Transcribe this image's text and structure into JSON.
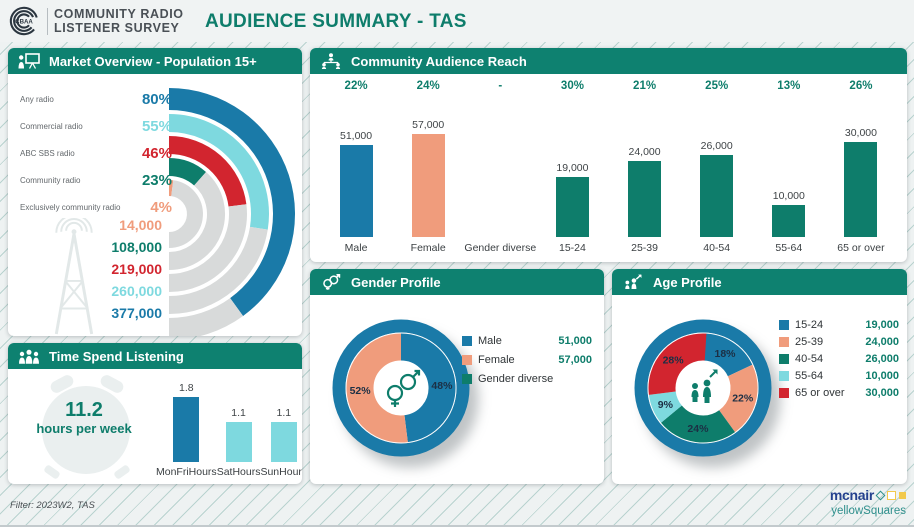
{
  "header": {
    "logo_text": "CBAA",
    "brand_line1": "COMMUNITY RADIO",
    "brand_line2": "LISTENER SURVEY",
    "title": "AUDIENCE SUMMARY - TAS"
  },
  "colors": {
    "header_bar": "#0E8170",
    "accent_teal": "#0E7D6B",
    "ring_gray": "#D8DADA",
    "donut_outer_blue": "#1A7AA8",
    "slice_label": "#1C2F44"
  },
  "chart_data": [
    {
      "id": "market_overview",
      "type": "bar",
      "variant": "radial-gauge",
      "title": "Market Overview - Population 15+",
      "legend_position": "left",
      "rows": [
        {
          "label": "Any radio",
          "pct": 80,
          "pct_label": "80%",
          "value": "377,000",
          "color": "#1A7AA8"
        },
        {
          "label": "Commercial radio",
          "pct": 55,
          "pct_label": "55%",
          "value": "260,000",
          "color": "#7ED9DF"
        },
        {
          "label": "ABC SBS radio",
          "pct": 46,
          "pct_label": "46%",
          "value": "219,000",
          "color": "#D2252F"
        },
        {
          "label": "Community radio",
          "pct": 23,
          "pct_label": "23%",
          "value": "108,000",
          "color": "#0E7D6B"
        },
        {
          "label": "Exclusively community radio",
          "pct": 4,
          "pct_label": "4%",
          "value": "14,000",
          "color": "#F09C7C"
        }
      ]
    },
    {
      "id": "audience_reach",
      "type": "bar",
      "title": "Community Audience Reach",
      "ylim_gender": [
        0,
        57000
      ],
      "ylim_age": [
        0,
        30000
      ],
      "bars": [
        {
          "label": "Male",
          "pct_label": "22%",
          "value": "51,000",
          "num": 51000,
          "color": "#1A7AA8",
          "group": "gender"
        },
        {
          "label": "Female",
          "pct_label": "24%",
          "value": "57,000",
          "num": 57000,
          "color": "#F09C7C",
          "group": "gender"
        },
        {
          "label": "Gender diverse",
          "pct_label": "-",
          "value": "",
          "num": 0,
          "color": null,
          "group": "gender"
        },
        {
          "label": "15-24",
          "pct_label": "30%",
          "value": "19,000",
          "num": 19000,
          "color": "#0E7D6B",
          "group": "age"
        },
        {
          "label": "25-39",
          "pct_label": "21%",
          "value": "24,000",
          "num": 24000,
          "color": "#0E7D6B",
          "group": "age"
        },
        {
          "label": "40-54",
          "pct_label": "25%",
          "value": "26,000",
          "num": 26000,
          "color": "#0E7D6B",
          "group": "age"
        },
        {
          "label": "55-64",
          "pct_label": "13%",
          "value": "10,000",
          "num": 10000,
          "color": "#0E7D6B",
          "group": "age"
        },
        {
          "label": "65 or over",
          "pct_label": "26%",
          "value": "30,000",
          "num": 30000,
          "color": "#0E7D6B",
          "group": "age"
        }
      ]
    },
    {
      "id": "gender_profile",
      "type": "pie",
      "title": "Gender Profile",
      "legend_position": "right",
      "slices": [
        {
          "label": "Male",
          "pct": 48,
          "pct_label": "48%",
          "value": "51,000",
          "color": "#1A7AA8"
        },
        {
          "label": "Female",
          "pct": 52,
          "pct_label": "52%",
          "value": "57,000",
          "color": "#F09C7C"
        },
        {
          "label": "Gender diverse",
          "pct": 0,
          "pct_label": "",
          "value": "",
          "color": "#0E7D6B"
        }
      ]
    },
    {
      "id": "age_profile",
      "type": "pie",
      "title": "Age Profile",
      "legend_position": "right",
      "slices": [
        {
          "label": "15-24",
          "pct": 18,
          "pct_label": "18%",
          "value": "19,000",
          "color": "#1A7AA8"
        },
        {
          "label": "25-39",
          "pct": 22,
          "pct_label": "22%",
          "value": "24,000",
          "color": "#F09C7C"
        },
        {
          "label": "40-54",
          "pct": 24,
          "pct_label": "24%",
          "value": "26,000",
          "color": "#0E7D6B"
        },
        {
          "label": "55-64",
          "pct": 9,
          "pct_label": "9%",
          "value": "10,000",
          "color": "#7ED9DF"
        },
        {
          "label": "65 or over",
          "pct": 28,
          "pct_label": "28%",
          "value": "30,000",
          "color": "#D2252F"
        }
      ]
    },
    {
      "id": "time_listening",
      "type": "bar",
      "title": "Time Spend Listening",
      "headline_value": "11.2",
      "headline_label": "hours per week",
      "bars": [
        {
          "label": "MonFriHours",
          "value": "1.8",
          "num": 1.8,
          "color": "#1A7AA8",
          "group": "time"
        },
        {
          "label": "SatHours",
          "value": "1.1",
          "num": 1.1,
          "color": "#7ED9DF",
          "group": "time"
        },
        {
          "label": "SunHours",
          "value": "1.1",
          "num": 1.1,
          "color": "#7ED9DF",
          "group": "time"
        }
      ]
    }
  ],
  "footer": {
    "filter_label": "Filter: 2023W2, TAS",
    "logo_line1": "mcnair",
    "logo_line2": "yellowSquares"
  }
}
